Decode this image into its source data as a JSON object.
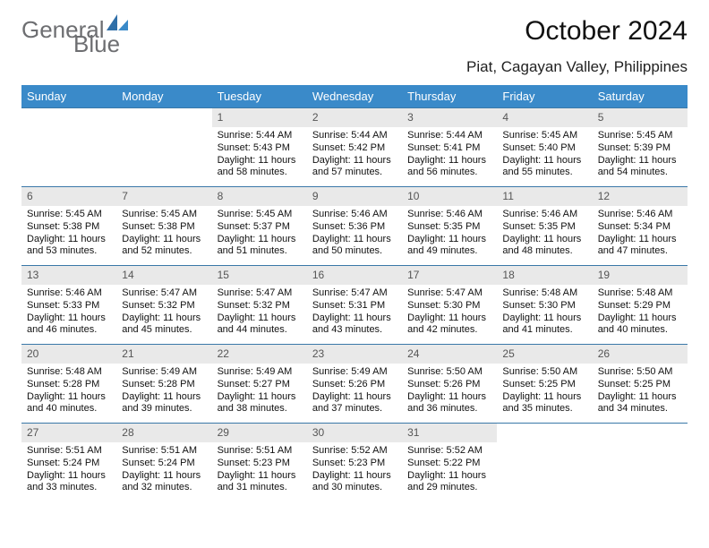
{
  "brand": {
    "word1": "General",
    "word2": "Blue"
  },
  "title": "October 2024",
  "location": "Piat, Cagayan Valley, Philippines",
  "colors": {
    "header_bg": "#3a8ac9",
    "header_text": "#ffffff",
    "daynum_bg": "#e9e9e9",
    "daynum_text": "#555555",
    "row_border": "#3a78a8",
    "brand_text": "#6d6e71",
    "brand_accent": "#2f6fa8"
  },
  "weekdays": [
    "Sunday",
    "Monday",
    "Tuesday",
    "Wednesday",
    "Thursday",
    "Friday",
    "Saturday"
  ],
  "weeks": [
    [
      null,
      null,
      {
        "n": "1",
        "sunrise": "Sunrise: 5:44 AM",
        "sunset": "Sunset: 5:43 PM",
        "day": "Daylight: 11 hours and 58 minutes."
      },
      {
        "n": "2",
        "sunrise": "Sunrise: 5:44 AM",
        "sunset": "Sunset: 5:42 PM",
        "day": "Daylight: 11 hours and 57 minutes."
      },
      {
        "n": "3",
        "sunrise": "Sunrise: 5:44 AM",
        "sunset": "Sunset: 5:41 PM",
        "day": "Daylight: 11 hours and 56 minutes."
      },
      {
        "n": "4",
        "sunrise": "Sunrise: 5:45 AM",
        "sunset": "Sunset: 5:40 PM",
        "day": "Daylight: 11 hours and 55 minutes."
      },
      {
        "n": "5",
        "sunrise": "Sunrise: 5:45 AM",
        "sunset": "Sunset: 5:39 PM",
        "day": "Daylight: 11 hours and 54 minutes."
      }
    ],
    [
      {
        "n": "6",
        "sunrise": "Sunrise: 5:45 AM",
        "sunset": "Sunset: 5:38 PM",
        "day": "Daylight: 11 hours and 53 minutes."
      },
      {
        "n": "7",
        "sunrise": "Sunrise: 5:45 AM",
        "sunset": "Sunset: 5:38 PM",
        "day": "Daylight: 11 hours and 52 minutes."
      },
      {
        "n": "8",
        "sunrise": "Sunrise: 5:45 AM",
        "sunset": "Sunset: 5:37 PM",
        "day": "Daylight: 11 hours and 51 minutes."
      },
      {
        "n": "9",
        "sunrise": "Sunrise: 5:46 AM",
        "sunset": "Sunset: 5:36 PM",
        "day": "Daylight: 11 hours and 50 minutes."
      },
      {
        "n": "10",
        "sunrise": "Sunrise: 5:46 AM",
        "sunset": "Sunset: 5:35 PM",
        "day": "Daylight: 11 hours and 49 minutes."
      },
      {
        "n": "11",
        "sunrise": "Sunrise: 5:46 AM",
        "sunset": "Sunset: 5:35 PM",
        "day": "Daylight: 11 hours and 48 minutes."
      },
      {
        "n": "12",
        "sunrise": "Sunrise: 5:46 AM",
        "sunset": "Sunset: 5:34 PM",
        "day": "Daylight: 11 hours and 47 minutes."
      }
    ],
    [
      {
        "n": "13",
        "sunrise": "Sunrise: 5:46 AM",
        "sunset": "Sunset: 5:33 PM",
        "day": "Daylight: 11 hours and 46 minutes."
      },
      {
        "n": "14",
        "sunrise": "Sunrise: 5:47 AM",
        "sunset": "Sunset: 5:32 PM",
        "day": "Daylight: 11 hours and 45 minutes."
      },
      {
        "n": "15",
        "sunrise": "Sunrise: 5:47 AM",
        "sunset": "Sunset: 5:32 PM",
        "day": "Daylight: 11 hours and 44 minutes."
      },
      {
        "n": "16",
        "sunrise": "Sunrise: 5:47 AM",
        "sunset": "Sunset: 5:31 PM",
        "day": "Daylight: 11 hours and 43 minutes."
      },
      {
        "n": "17",
        "sunrise": "Sunrise: 5:47 AM",
        "sunset": "Sunset: 5:30 PM",
        "day": "Daylight: 11 hours and 42 minutes."
      },
      {
        "n": "18",
        "sunrise": "Sunrise: 5:48 AM",
        "sunset": "Sunset: 5:30 PM",
        "day": "Daylight: 11 hours and 41 minutes."
      },
      {
        "n": "19",
        "sunrise": "Sunrise: 5:48 AM",
        "sunset": "Sunset: 5:29 PM",
        "day": "Daylight: 11 hours and 40 minutes."
      }
    ],
    [
      {
        "n": "20",
        "sunrise": "Sunrise: 5:48 AM",
        "sunset": "Sunset: 5:28 PM",
        "day": "Daylight: 11 hours and 40 minutes."
      },
      {
        "n": "21",
        "sunrise": "Sunrise: 5:49 AM",
        "sunset": "Sunset: 5:28 PM",
        "day": "Daylight: 11 hours and 39 minutes."
      },
      {
        "n": "22",
        "sunrise": "Sunrise: 5:49 AM",
        "sunset": "Sunset: 5:27 PM",
        "day": "Daylight: 11 hours and 38 minutes."
      },
      {
        "n": "23",
        "sunrise": "Sunrise: 5:49 AM",
        "sunset": "Sunset: 5:26 PM",
        "day": "Daylight: 11 hours and 37 minutes."
      },
      {
        "n": "24",
        "sunrise": "Sunrise: 5:50 AM",
        "sunset": "Sunset: 5:26 PM",
        "day": "Daylight: 11 hours and 36 minutes."
      },
      {
        "n": "25",
        "sunrise": "Sunrise: 5:50 AM",
        "sunset": "Sunset: 5:25 PM",
        "day": "Daylight: 11 hours and 35 minutes."
      },
      {
        "n": "26",
        "sunrise": "Sunrise: 5:50 AM",
        "sunset": "Sunset: 5:25 PM",
        "day": "Daylight: 11 hours and 34 minutes."
      }
    ],
    [
      {
        "n": "27",
        "sunrise": "Sunrise: 5:51 AM",
        "sunset": "Sunset: 5:24 PM",
        "day": "Daylight: 11 hours and 33 minutes."
      },
      {
        "n": "28",
        "sunrise": "Sunrise: 5:51 AM",
        "sunset": "Sunset: 5:24 PM",
        "day": "Daylight: 11 hours and 32 minutes."
      },
      {
        "n": "29",
        "sunrise": "Sunrise: 5:51 AM",
        "sunset": "Sunset: 5:23 PM",
        "day": "Daylight: 11 hours and 31 minutes."
      },
      {
        "n": "30",
        "sunrise": "Sunrise: 5:52 AM",
        "sunset": "Sunset: 5:23 PM",
        "day": "Daylight: 11 hours and 30 minutes."
      },
      {
        "n": "31",
        "sunrise": "Sunrise: 5:52 AM",
        "sunset": "Sunset: 5:22 PM",
        "day": "Daylight: 11 hours and 29 minutes."
      },
      null,
      null
    ]
  ]
}
